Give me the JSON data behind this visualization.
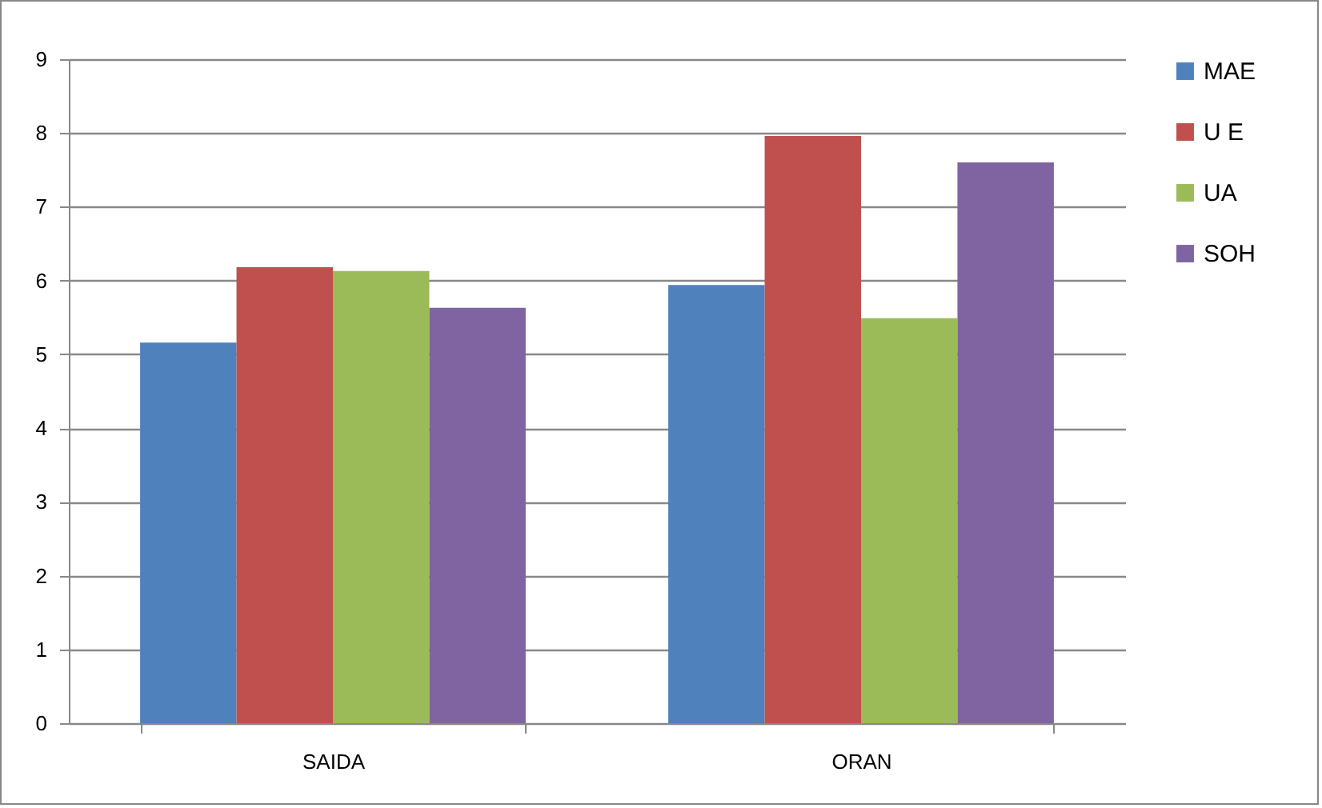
{
  "chart_data": {
    "type": "bar",
    "categories": [
      "SAIDA",
      "ORAN"
    ],
    "series": [
      {
        "name": "MAE",
        "color": "#4f81bd",
        "values": [
          5.16,
          5.94
        ]
      },
      {
        "name": "U E",
        "color": "#c0504d",
        "values": [
          6.18,
          7.96
        ]
      },
      {
        "name": "UA",
        "color": "#9bbb59",
        "values": [
          6.13,
          5.49
        ]
      },
      {
        "name": "SOH",
        "color": "#8064a2",
        "values": [
          5.63,
          7.6
        ]
      }
    ],
    "ylim": [
      0,
      9
    ],
    "yticks": [
      0,
      1,
      2,
      3,
      4,
      5,
      6,
      7,
      8,
      9
    ],
    "grid": "y",
    "legend": "right"
  }
}
